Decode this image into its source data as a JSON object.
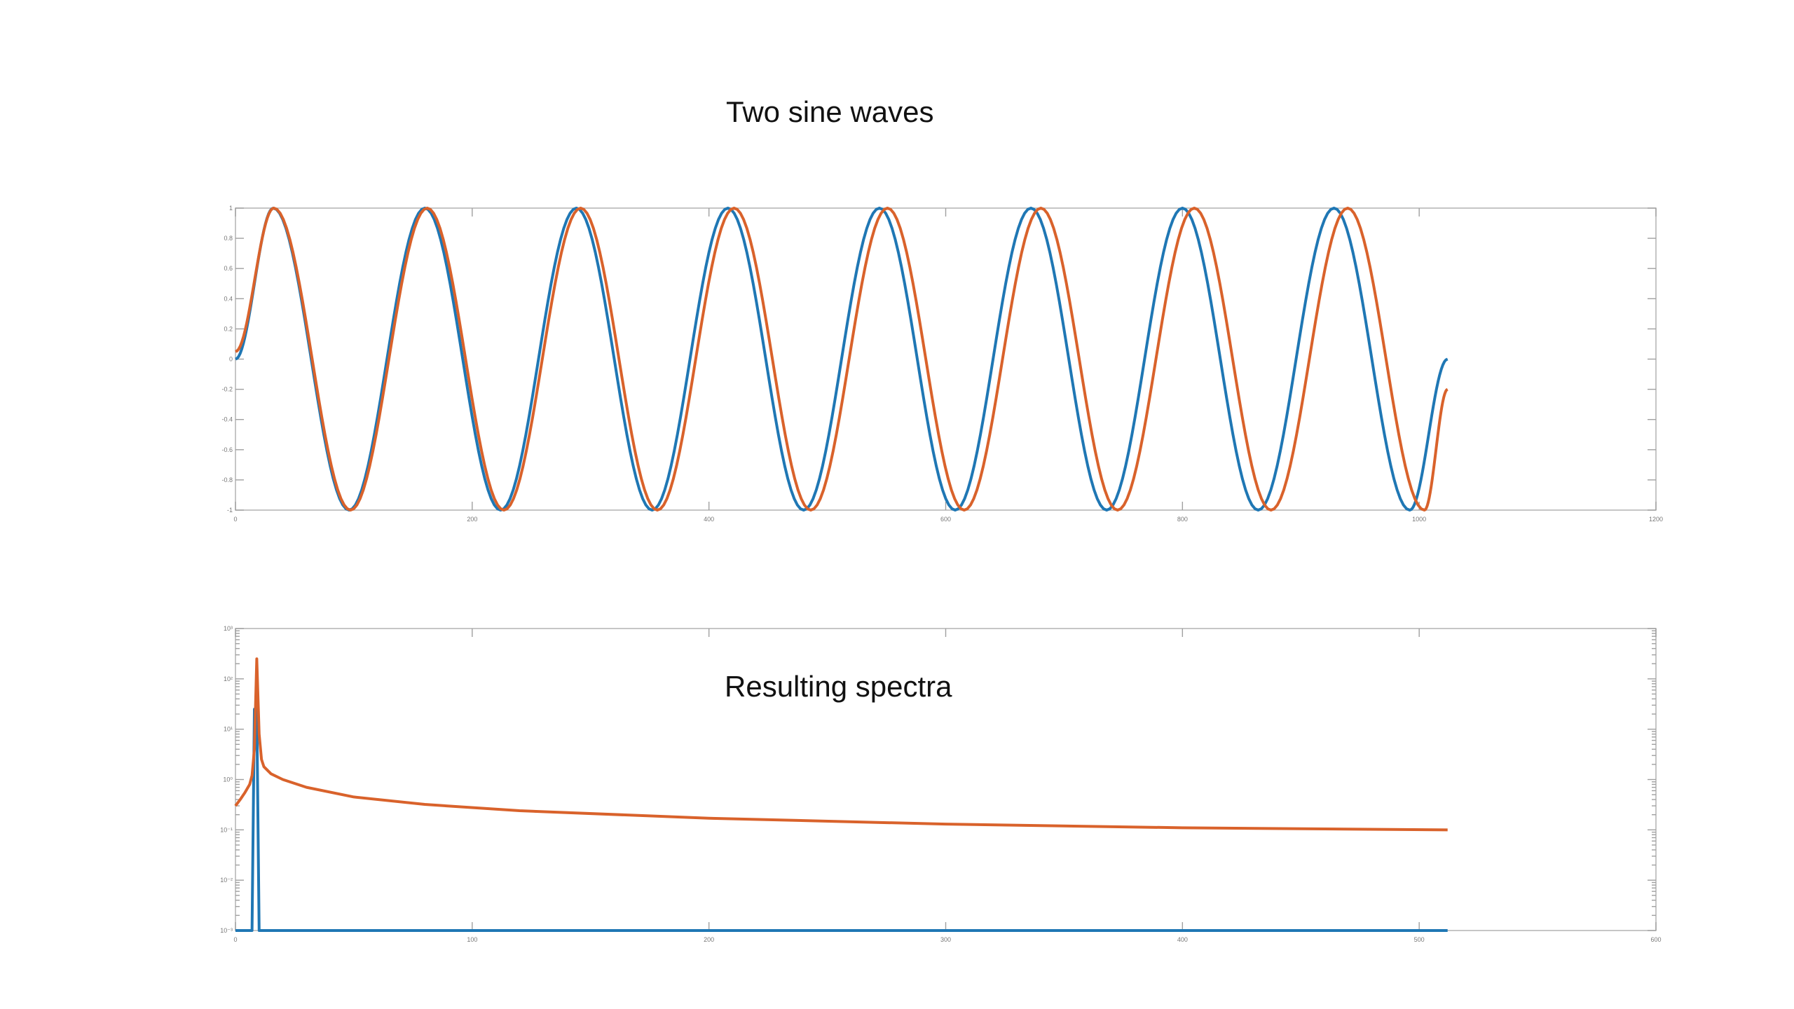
{
  "slide": {
    "title_top": "Two sine waves",
    "title_bottom": "Resulting spectra"
  },
  "colors": {
    "series_blue": "#1f77b4",
    "series_orange": "#d9622b",
    "axis": "#b8b8b8"
  },
  "chart_data": [
    {
      "type": "line",
      "title": "",
      "xlabel": "",
      "ylabel": "",
      "xlim": [
        0,
        1200
      ],
      "ylim": [
        -1,
        1
      ],
      "xticks": [
        0,
        200,
        400,
        600,
        800,
        1000,
        1200
      ],
      "yticks": [
        -1,
        -0.8,
        -0.6,
        -0.4,
        -0.2,
        0,
        0.2,
        0.4,
        0.6,
        0.8,
        1
      ],
      "xtick_labels": [
        "0",
        "200",
        "400",
        "600",
        "800",
        "1000",
        "1200"
      ],
      "ytick_labels": [
        "-1",
        "-0.8",
        "-0.6",
        "-0.4",
        "-0.2",
        "0",
        "0.2",
        "0.4",
        "0.6",
        "0.8",
        "1"
      ],
      "grid": false,
      "series": [
        {
          "color": "#1f77b4",
          "x": [
            0,
            32,
            96,
            160,
            224,
            288,
            352,
            416,
            480,
            544,
            608,
            672,
            736,
            800,
            864,
            928,
            992,
            1024
          ],
          "y": [
            0,
            1,
            -1,
            1,
            -1,
            1,
            -1,
            1,
            -1,
            1,
            -1,
            1,
            -1,
            1,
            -1,
            1,
            -1,
            0
          ]
        },
        {
          "color": "#d9622b",
          "x": [
            0,
            32.4,
            97.2,
            162,
            226.8,
            291.6,
            356.4,
            421.2,
            486,
            550.8,
            615.6,
            680.4,
            745.2,
            810,
            874.8,
            939.6,
            1004.4,
            1024
          ],
          "y": [
            0.05,
            1,
            -1,
            1,
            -1,
            1,
            -1,
            1,
            -1,
            1,
            -1,
            1,
            -1,
            1,
            -1,
            1,
            -1,
            -0.2
          ]
        }
      ]
    },
    {
      "type": "line",
      "title": "",
      "xlabel": "",
      "ylabel": "",
      "yscale": "log",
      "xlim": [
        0,
        600
      ],
      "ylim": [
        0.001,
        1000
      ],
      "xticks": [
        0,
        100,
        200,
        300,
        400,
        500,
        600
      ],
      "xtick_labels": [
        "0",
        "100",
        "200",
        "300",
        "400",
        "500",
        "600"
      ],
      "yticks": [
        0.001,
        0.01,
        0.1,
        1,
        10,
        100,
        1000
      ],
      "ytick_labels": [
        "10⁻³",
        "10⁻²",
        "10⁻¹",
        "10⁰",
        "10¹",
        "10²",
        "10³"
      ],
      "grid": false,
      "series": [
        {
          "color": "#1f77b4",
          "x": [
            0,
            7,
            8,
            9,
            10,
            512
          ],
          "y": [
            0.001,
            0.001,
            25,
            25,
            0.001,
            0.001
          ]
        },
        {
          "color": "#d9622b",
          "x": [
            0,
            2,
            4,
            6,
            7,
            8,
            9,
            10,
            11,
            12,
            15,
            20,
            30,
            50,
            80,
            120,
            200,
            300,
            400,
            512
          ],
          "y": [
            0.3,
            0.4,
            0.55,
            0.8,
            1.2,
            4,
            250,
            8,
            2.5,
            1.8,
            1.3,
            1.0,
            0.7,
            0.45,
            0.32,
            0.24,
            0.17,
            0.13,
            0.11,
            0.1
          ]
        }
      ]
    }
  ]
}
